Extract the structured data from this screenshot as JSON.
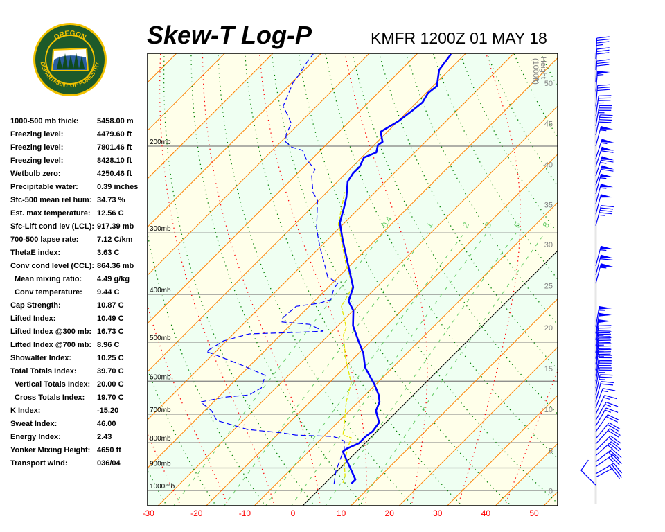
{
  "header": {
    "title": "Skew-T Log-P",
    "station_time": "KMFR 1200Z 01 MAY 18"
  },
  "logo": {
    "text_top": "OREGON",
    "text_bottom": "DEPARTMENT OF FORESTRY",
    "ring_color": "#f2c200",
    "field_color": "#1d5a2a"
  },
  "stats": [
    {
      "label": "1000-500 mb thick:",
      "value": "5458.00 m"
    },
    {
      "label": "Freezing level:",
      "value": "4479.60 ft"
    },
    {
      "label": "Freezing level:",
      "value": "7801.46 ft"
    },
    {
      "label": "Freezing level:",
      "value": "8428.10 ft"
    },
    {
      "label": "Wetbulb zero:",
      "value": "4250.46 ft"
    },
    {
      "label": "Precipitable water:",
      "value": "0.39 inches"
    },
    {
      "label": "Sfc-500 mean rel hum:",
      "value": "34.73 %"
    },
    {
      "label": "Est. max temperature:",
      "value": "12.56 C"
    },
    {
      "label": "Sfc-Lift cond lev (LCL):",
      "value": "917.39 mb"
    },
    {
      "label": "700-500 lapse rate:",
      "value": "7.12 C/km"
    },
    {
      "label": "ThetaE index:",
      "value": "3.63 C"
    },
    {
      "label": "Conv cond level (CCL):",
      "value": "864.36 mb"
    },
    {
      "label": "Mean mixing ratio:",
      "value": "4.49 g/kg"
    },
    {
      "label": "Conv temperature:",
      "value": "9.44 C"
    },
    {
      "label": "Cap Strength:",
      "value": "10.87 C"
    },
    {
      "label": "Lifted Index:",
      "value": "10.49 C"
    },
    {
      "label": "Lifted Index @300 mb:",
      "value": "16.73 C"
    },
    {
      "label": "Lifted Index @700 mb:",
      "value": "8.96 C"
    },
    {
      "label": "Showalter Index:",
      "value": "10.25 C"
    },
    {
      "label": "Total Totals Index:",
      "value": "39.70 C"
    },
    {
      "label": "Vertical Totals Index:",
      "value": "20.00 C"
    },
    {
      "label": "Cross Totals Index:",
      "value": "19.70 C"
    },
    {
      "label": "K Index:",
      "value": "-15.20"
    },
    {
      "label": "Sweat Index:",
      "value": "46.00"
    },
    {
      "label": "Energy Index:",
      "value": "2.43"
    },
    {
      "label": "Yonker Mixing Height:",
      "value": "4650 ft"
    },
    {
      "label": "Transport wind:",
      "value": "036/04"
    }
  ],
  "chart_data": {
    "type": "skewt-logp",
    "pressure_range_mb": [
      1075,
      130
    ],
    "pressure_levels": [
      {
        "p": 200,
        "label": "200mb"
      },
      {
        "p": 300,
        "label": "300mb"
      },
      {
        "p": 400,
        "label": "400mb"
      },
      {
        "p": 500,
        "label": "500mb"
      },
      {
        "p": 600,
        "label": "600mb"
      },
      {
        "p": 700,
        "label": "700mb"
      },
      {
        "p": 800,
        "label": "800mb"
      },
      {
        "p": 900,
        "label": "900mb"
      },
      {
        "p": 1000,
        "label": "1000mb"
      }
    ],
    "temperature_ticks_C": [
      "-30",
      "-20",
      "-10",
      "0",
      "10",
      "20",
      "30",
      "40",
      "50"
    ],
    "height_axis": {
      "label_1": "Height",
      "label_2": "(1000ft)",
      "ticks": [
        {
          "v": "0",
          "p": 1002
        },
        {
          "v": "5",
          "p": 830
        },
        {
          "v": "10",
          "p": 685
        },
        {
          "v": "15",
          "p": 566
        },
        {
          "v": "20",
          "p": 467
        },
        {
          "v": "25",
          "p": 384
        },
        {
          "v": "30",
          "p": 317
        },
        {
          "v": "35",
          "p": 263
        },
        {
          "v": "40",
          "p": 218
        },
        {
          "v": "45",
          "p": 180
        },
        {
          "v": "50",
          "p": 149
        }
      ]
    },
    "mixing_ratio_lines_gkg": [
      {
        "w": 0.4,
        "label": "0.4"
      },
      {
        "w": 1,
        "label": "1"
      },
      {
        "w": 2,
        "label": "2"
      },
      {
        "w": 3,
        "label": "3"
      },
      {
        "w": 5,
        "label": "5"
      },
      {
        "w": 8,
        "label": "8"
      }
    ],
    "isotherm_step_C": 10,
    "dry_adiabats_K": [
      240,
      420,
      10
    ],
    "moist_adiabats_C": [
      -30,
      40,
      10
    ],
    "temperature_profile": [
      [
        968,
        5.5
      ],
      [
        950,
        5.5
      ],
      [
        834,
        -2.9
      ],
      [
        823,
        -2.7
      ],
      [
        802,
        -1.3
      ],
      [
        777,
        -1.3
      ],
      [
        759,
        -0.9
      ],
      [
        728,
        -1.4
      ],
      [
        689,
        -4.5
      ],
      [
        661,
        -5.6
      ],
      [
        640,
        -7.2
      ],
      [
        609,
        -10.3
      ],
      [
        562,
        -15.8
      ],
      [
        527,
        -19.0
      ],
      [
        494,
        -23.0
      ],
      [
        463,
        -26.9
      ],
      [
        431,
        -30.0
      ],
      [
        413,
        -32.9
      ],
      [
        387,
        -34.8
      ],
      [
        346,
        -40.9
      ],
      [
        309,
        -47.0
      ],
      [
        286,
        -51.0
      ],
      [
        267,
        -53.2
      ],
      [
        254,
        -54.9
      ],
      [
        236,
        -57.9
      ],
      [
        227,
        -58.5
      ],
      [
        220,
        -58.5
      ],
      [
        211,
        -59.5
      ],
      [
        206,
        -58.0
      ],
      [
        199,
        -59.2
      ],
      [
        196,
        -58.9
      ],
      [
        187,
        -61.4
      ],
      [
        178,
        -59.9
      ],
      [
        169,
        -59.2
      ],
      [
        163,
        -58.8
      ],
      [
        156,
        -59.6
      ],
      [
        151,
        -59.2
      ],
      [
        140,
        -62.1
      ],
      [
        130,
        -62.9
      ]
    ],
    "dewpoint_profile": [
      [
        968,
        1.9
      ],
      [
        913,
        -0.3
      ],
      [
        823,
        -3.2
      ],
      [
        795,
        -4.7
      ],
      [
        784,
        -6.3
      ],
      [
        777,
        -8.2
      ],
      [
        772,
        -16.1
      ],
      [
        764,
        -19.4
      ],
      [
        752,
        -27.3
      ],
      [
        721,
        -35.5
      ],
      [
        689,
        -38.6
      ],
      [
        661,
        -42.7
      ],
      [
        646,
        -38.4
      ],
      [
        640,
        -34.1
      ],
      [
        619,
        -33.0
      ],
      [
        584,
        -34.8
      ],
      [
        557,
        -41.7
      ],
      [
        532,
        -49.0
      ],
      [
        522,
        -52.0
      ],
      [
        497,
        -50.6
      ],
      [
        481,
        -46.7
      ],
      [
        478,
        -38.4
      ],
      [
        475,
        -31.9
      ],
      [
        460,
        -36.2
      ],
      [
        455,
        -42.4
      ],
      [
        448,
        -43.1
      ],
      [
        423,
        -42.7
      ],
      [
        417,
        -38.6
      ],
      [
        410,
        -36.9
      ],
      [
        390,
        -38.5
      ],
      [
        379,
        -38.9
      ],
      [
        369,
        -42.2
      ],
      [
        354,
        -44.5
      ],
      [
        321,
        -50.0
      ],
      [
        294,
        -54.6
      ],
      [
        258,
        -60.2
      ],
      [
        248,
        -62.9
      ],
      [
        230,
        -66.5
      ],
      [
        223,
        -67.2
      ],
      [
        213,
        -71.0
      ],
      [
        204,
        -73.7
      ],
      [
        201,
        -76.6
      ],
      [
        196,
        -79.0
      ],
      [
        189,
        -80.5
      ],
      [
        180,
        -81.6
      ],
      [
        173,
        -84.1
      ],
      [
        166,
        -86.9
      ],
      [
        156,
        -88.5
      ],
      [
        149,
        -89.7
      ],
      [
        143,
        -90.2
      ],
      [
        135,
        -91.1
      ],
      [
        130,
        -91.5
      ]
    ],
    "parcel_profile": [
      [
        965,
        3.6
      ],
      [
        934,
        2.6
      ],
      [
        884,
        0.0
      ],
      [
        821,
        -2.6
      ],
      [
        782,
        -4.0
      ],
      [
        772,
        -6.3
      ],
      [
        735,
        -8.2
      ],
      [
        661,
        -12.5
      ],
      [
        605,
        -15.4
      ],
      [
        539,
        -21.7
      ],
      [
        483,
        -27.0
      ],
      [
        467,
        -27.9
      ],
      [
        423,
        -33.3
      ],
      [
        385,
        -35.1
      ],
      [
        350,
        -40.7
      ],
      [
        288,
        -51.0
      ],
      [
        248,
        -56.3
      ]
    ],
    "winds": [
      {
        "p": 975,
        "dir": 315,
        "spd": 10
      },
      {
        "p": 940,
        "dir": 62,
        "spd": 20
      },
      {
        "p": 925,
        "dir": 60,
        "spd": 25
      },
      {
        "p": 895,
        "dir": 55,
        "spd": 25
      },
      {
        "p": 875,
        "dir": 52,
        "spd": 25
      },
      {
        "p": 850,
        "dir": 48,
        "spd": 25
      },
      {
        "p": 830,
        "dir": 45,
        "spd": 20
      },
      {
        "p": 805,
        "dir": 42,
        "spd": 20
      },
      {
        "p": 785,
        "dir": 40,
        "spd": 20
      },
      {
        "p": 760,
        "dir": 35,
        "spd": 20
      },
      {
        "p": 740,
        "dir": 30,
        "spd": 15
      },
      {
        "p": 720,
        "dir": 30,
        "spd": 15
      },
      {
        "p": 700,
        "dir": 25,
        "spd": 15
      },
      {
        "p": 680,
        "dir": 20,
        "spd": 15
      },
      {
        "p": 660,
        "dir": 15,
        "spd": 20
      },
      {
        "p": 640,
        "dir": 12,
        "spd": 25
      },
      {
        "p": 620,
        "dir": 10,
        "spd": 25
      },
      {
        "p": 600,
        "dir": 10,
        "spd": 30
      },
      {
        "p": 585,
        "dir": 10,
        "spd": 30
      },
      {
        "p": 570,
        "dir": 8,
        "spd": 35
      },
      {
        "p": 555,
        "dir": 8,
        "spd": 35
      },
      {
        "p": 540,
        "dir": 8,
        "spd": 35
      },
      {
        "p": 525,
        "dir": 8,
        "spd": 40
      },
      {
        "p": 510,
        "dir": 8,
        "spd": 45
      },
      {
        "p": 495,
        "dir": 8,
        "spd": 50
      },
      {
        "p": 480,
        "dir": 10,
        "spd": 50
      },
      {
        "p": 465,
        "dir": 10,
        "spd": 55
      },
      {
        "p": 380,
        "dir": 15,
        "spd": 55
      },
      {
        "p": 365,
        "dir": 15,
        "spd": 60
      },
      {
        "p": 350,
        "dir": 15,
        "spd": 55
      },
      {
        "p": 290,
        "dir": 15,
        "spd": 45
      },
      {
        "p": 275,
        "dir": 15,
        "spd": 50
      },
      {
        "p": 262,
        "dir": 15,
        "spd": 55
      },
      {
        "p": 250,
        "dir": 15,
        "spd": 55
      },
      {
        "p": 240,
        "dir": 18,
        "spd": 60
      },
      {
        "p": 230,
        "dir": 18,
        "spd": 65
      },
      {
        "p": 220,
        "dir": 18,
        "spd": 60
      },
      {
        "p": 212,
        "dir": 18,
        "spd": 55
      },
      {
        "p": 200,
        "dir": 15,
        "spd": 55
      },
      {
        "p": 190,
        "dir": 12,
        "spd": 40
      },
      {
        "p": 182,
        "dir": 10,
        "spd": 35
      },
      {
        "p": 174,
        "dir": 8,
        "spd": 35
      },
      {
        "p": 166,
        "dir": 5,
        "spd": 30
      },
      {
        "p": 155,
        "dir": 5,
        "spd": 55
      },
      {
        "p": 148,
        "dir": 3,
        "spd": 30
      },
      {
        "p": 140,
        "dir": 3,
        "spd": 30
      },
      {
        "p": 133,
        "dir": 3,
        "spd": 35
      }
    ],
    "colors": {
      "temperature": "#0000ff",
      "dewpoint": "#0000ff",
      "parcel": "#e6e600",
      "isotherm": "#ff8000",
      "zero_isotherm": "#000000",
      "dry_adiabat": "#008000",
      "moist_adiabat": "#ff0000",
      "mixing_ratio": "#66cc66",
      "isobar": "#808080",
      "band_a": "#effff2",
      "band_b": "#ffffea",
      "temp_tick": "#ff0000",
      "height_tick": "#808080",
      "wind": "#0000ff"
    }
  }
}
